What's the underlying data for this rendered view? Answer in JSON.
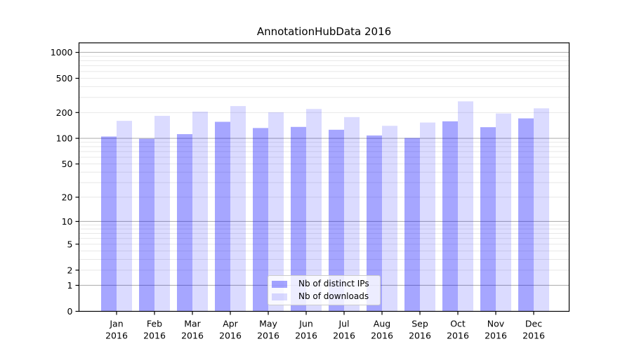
{
  "chart_data": {
    "type": "bar",
    "title": "AnnotationHubData 2016",
    "y_scale": "log1p",
    "ylim": [
      0,
      1290
    ],
    "yticks": [
      0,
      1,
      2,
      5,
      10,
      20,
      50,
      100,
      200,
      500,
      1000
    ],
    "categories": [
      {
        "month": "Jan",
        "year": "2016"
      },
      {
        "month": "Feb",
        "year": "2016"
      },
      {
        "month": "Mar",
        "year": "2016"
      },
      {
        "month": "Apr",
        "year": "2016"
      },
      {
        "month": "May",
        "year": "2016"
      },
      {
        "month": "Jun",
        "year": "2016"
      },
      {
        "month": "Jul",
        "year": "2016"
      },
      {
        "month": "Aug",
        "year": "2016"
      },
      {
        "month": "Sep",
        "year": "2016"
      },
      {
        "month": "Oct",
        "year": "2016"
      },
      {
        "month": "Nov",
        "year": "2016"
      },
      {
        "month": "Dec",
        "year": "2016"
      }
    ],
    "series": [
      {
        "name": "Nb of distinct IPs",
        "color": "#0000ff",
        "fill_opacity": 0.35,
        "values": [
          105,
          99,
          112,
          156,
          132,
          136,
          126,
          108,
          101,
          158,
          135,
          171
        ]
      },
      {
        "name": "Nb of downloads",
        "color": "#0000ff",
        "fill_opacity": 0.14,
        "values": [
          160,
          183,
          205,
          238,
          201,
          220,
          177,
          140,
          153,
          270,
          195,
          224
        ]
      }
    ],
    "grid": {
      "major_values": [
        1,
        10,
        100,
        1000
      ],
      "major_color": "#b3b3b3",
      "minor_color": "#e8e8e8"
    },
    "legend_position": "lower-center",
    "axis_color": "#000000",
    "text_color": "#000000",
    "background": "#ffffff"
  }
}
